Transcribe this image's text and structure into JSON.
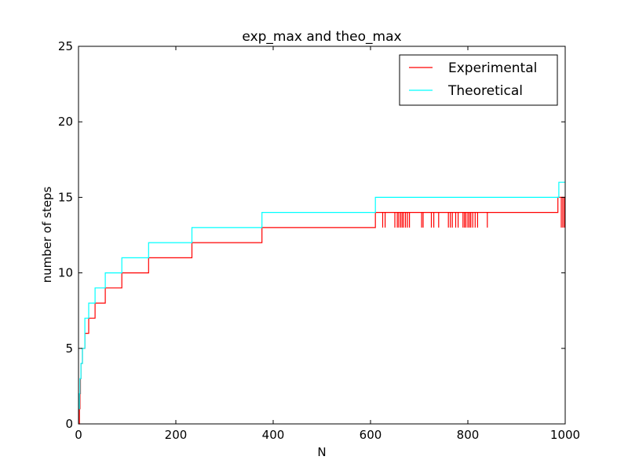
{
  "chart_data": {
    "type": "line",
    "title": "exp_max and theo_max",
    "xlabel": "N",
    "ylabel": "number of steps",
    "xlim": [
      0,
      1000
    ],
    "ylim": [
      0,
      25
    ],
    "xticks": [
      0,
      200,
      400,
      600,
      800,
      1000
    ],
    "yticks": [
      0,
      5,
      10,
      15,
      20,
      25
    ],
    "grid": false,
    "legend_position": "top-right",
    "series": [
      {
        "name": "Experimental",
        "color": "#ff0000",
        "steps": [
          [
            1,
            0
          ],
          [
            2,
            1
          ],
          [
            3,
            2
          ],
          [
            4,
            3
          ],
          [
            5,
            4
          ],
          [
            8,
            5
          ],
          [
            13,
            6
          ],
          [
            21,
            7
          ],
          [
            34,
            8
          ],
          [
            55,
            9
          ],
          [
            89,
            10
          ],
          [
            144,
            11
          ],
          [
            233,
            12
          ],
          [
            377,
            13
          ],
          [
            610,
            14
          ],
          [
            985,
            15
          ]
        ],
        "drops_to": 13,
        "drops_at": [
          625,
          630,
          650,
          655,
          658,
          662,
          665,
          668,
          672,
          676,
          680,
          705,
          708,
          725,
          730,
          740,
          760,
          764,
          768,
          775,
          780,
          790,
          793,
          796,
          800,
          803,
          806,
          810,
          815,
          820,
          840,
          992,
          995,
          998
        ],
        "end_x": 1000
      },
      {
        "name": "Theoretical",
        "color": "#00ffff",
        "steps": [
          [
            1,
            1
          ],
          [
            2,
            2
          ],
          [
            3,
            3
          ],
          [
            5,
            4
          ],
          [
            8,
            5
          ],
          [
            13,
            7
          ],
          [
            21,
            8
          ],
          [
            34,
            9
          ],
          [
            55,
            10
          ],
          [
            89,
            11
          ],
          [
            144,
            12
          ],
          [
            233,
            13
          ],
          [
            377,
            14
          ],
          [
            610,
            15
          ],
          [
            987,
            16
          ]
        ],
        "end_x": 1000
      }
    ]
  }
}
